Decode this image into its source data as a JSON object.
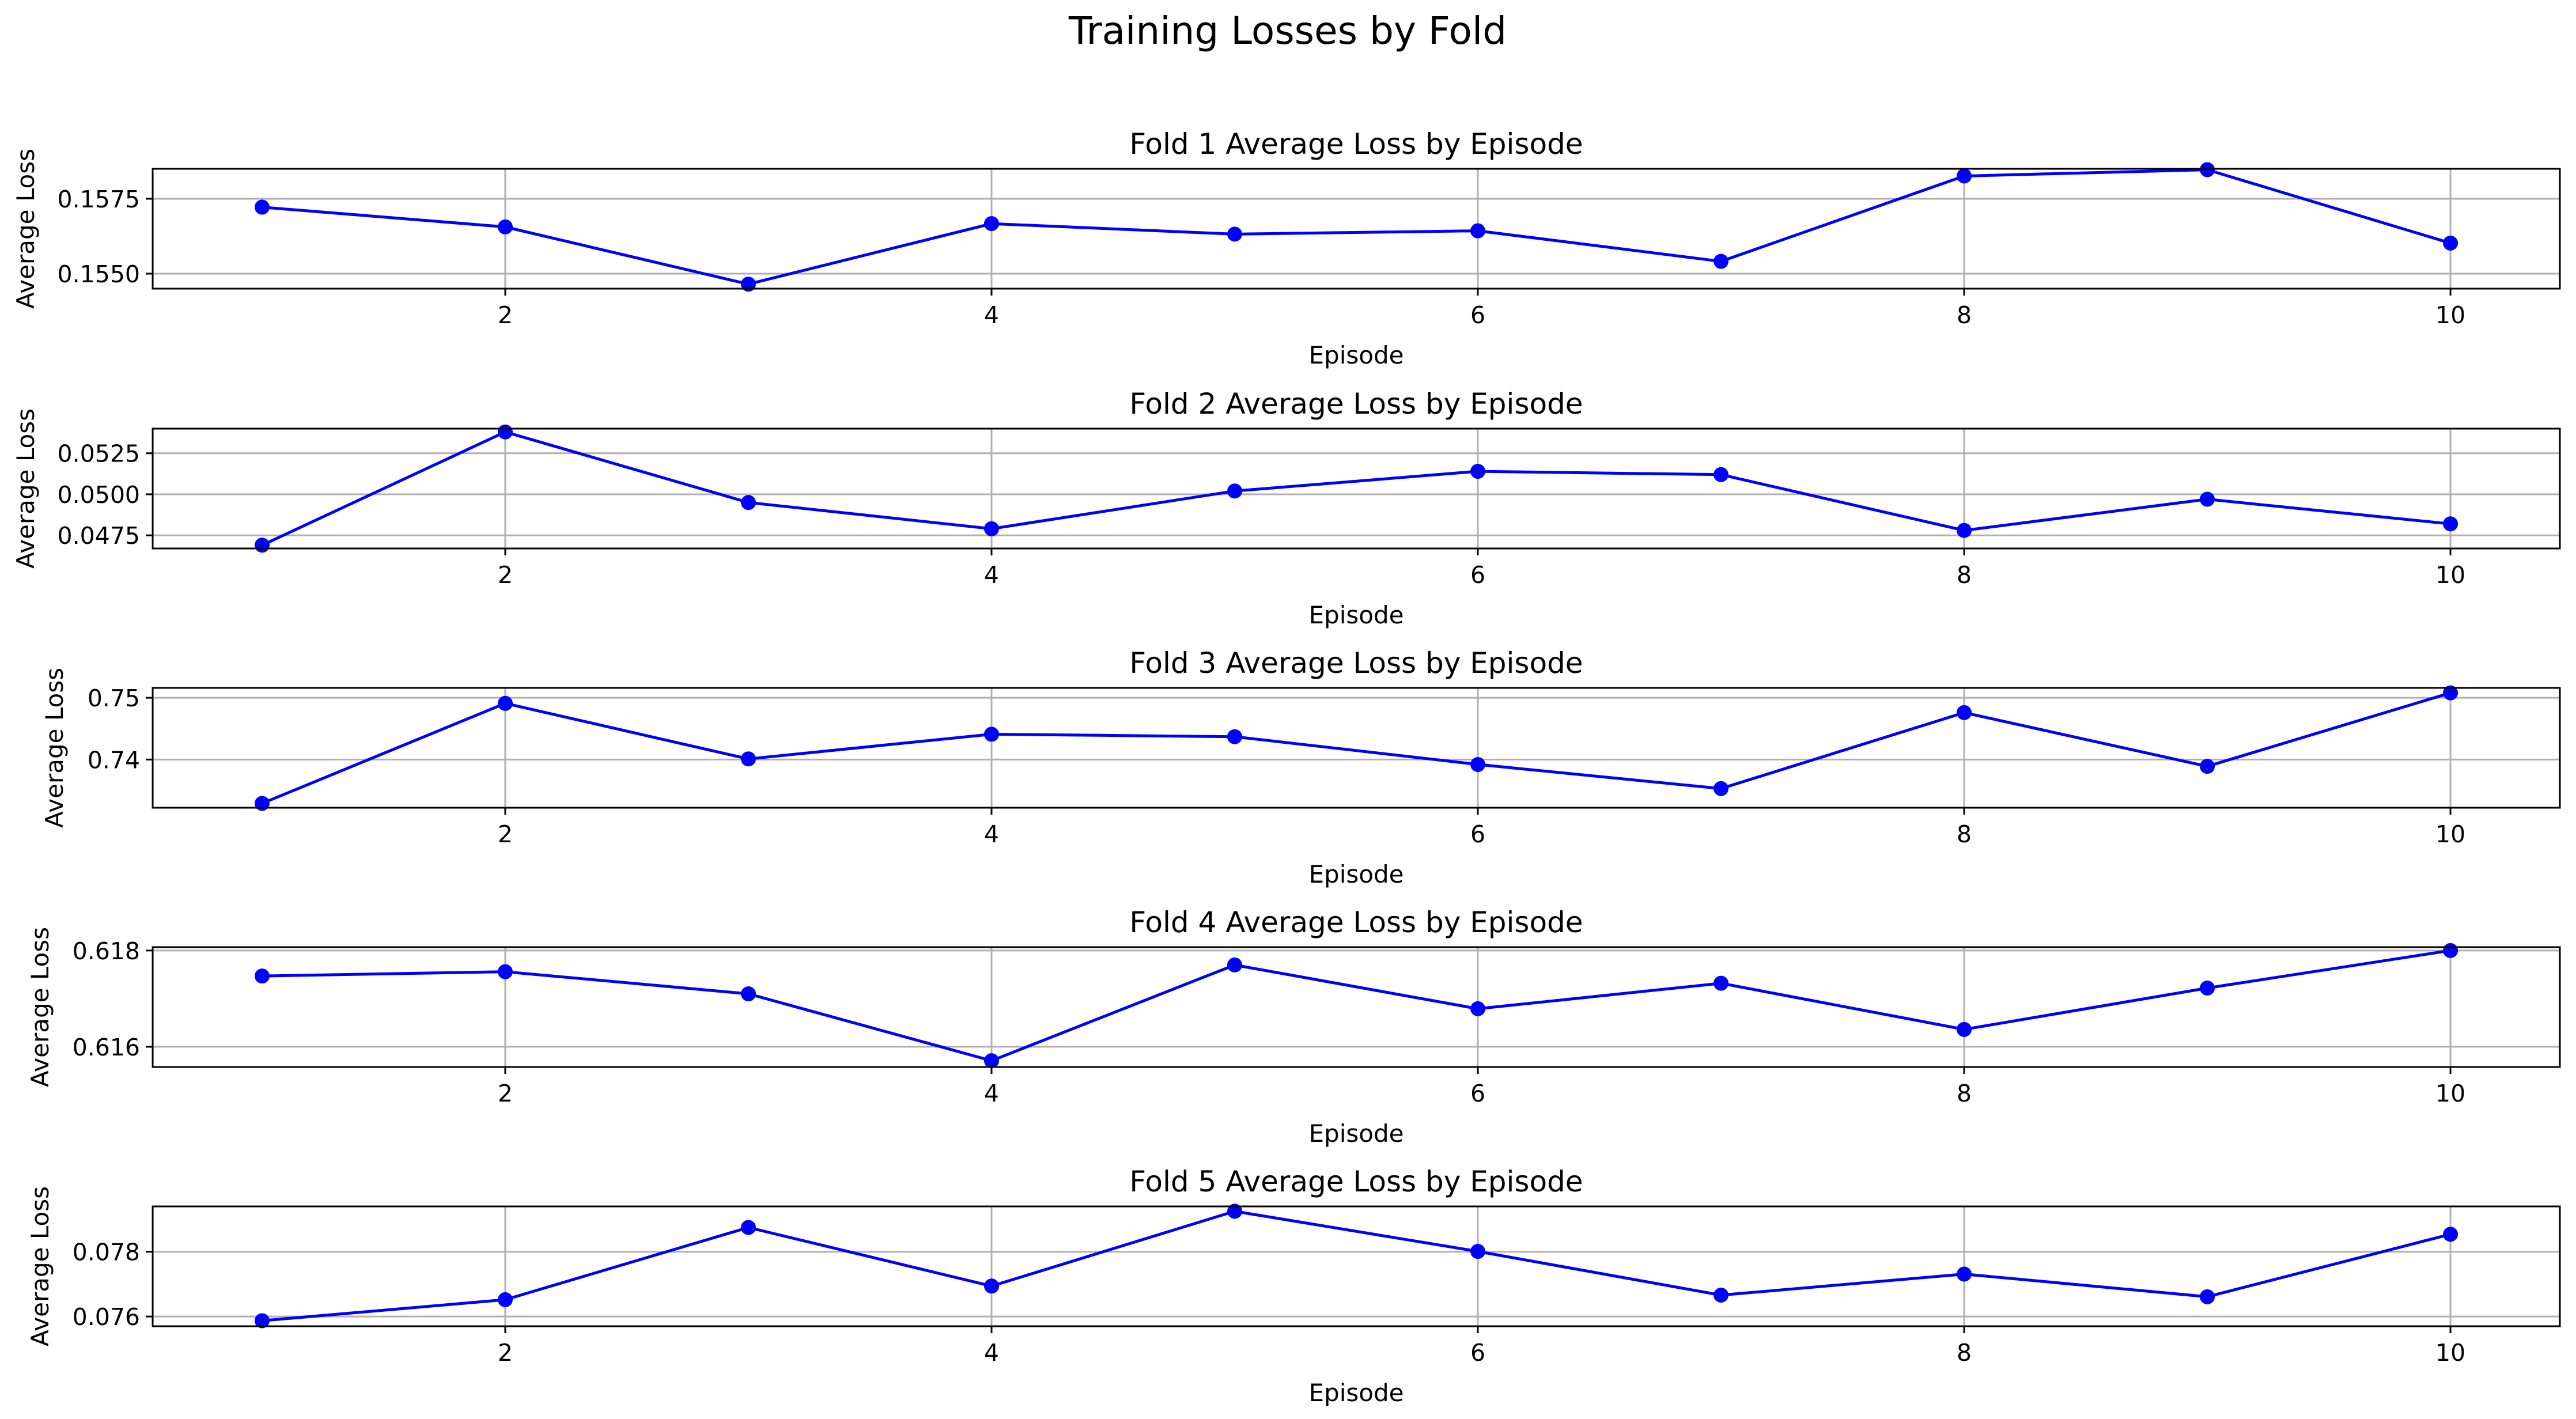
{
  "suptitle": "Training Losses by Fold",
  "chart_data": [
    {
      "type": "line",
      "title": "Fold 1 Average Loss by Episode",
      "xlabel": "Episode",
      "ylabel": "Average Loss",
      "x": [
        1,
        2,
        3,
        4,
        5,
        6,
        7,
        8,
        9,
        10
      ],
      "series": [
        {
          "values": [
            0.15722,
            0.15656,
            0.15465,
            0.15667,
            0.15632,
            0.15643,
            0.15541,
            0.15826,
            0.15847,
            0.15602
          ],
          "color": "#0000ff",
          "marker": "circle"
        }
      ],
      "xlim": [
        0.55,
        10.45
      ],
      "ylim": [
        0.1545,
        0.1585
      ],
      "xticks": [
        2,
        4,
        6,
        8,
        10
      ],
      "xtick_labels": [
        "2",
        "4",
        "6",
        "8",
        "10"
      ],
      "yticks": [
        0.155,
        0.1575
      ],
      "ytick_labels": [
        "0.1550",
        "0.1575"
      ],
      "grid": true
    },
    {
      "type": "line",
      "title": "Fold 2 Average Loss by Episode",
      "xlabel": "Episode",
      "ylabel": "Average Loss",
      "x": [
        1,
        2,
        3,
        4,
        5,
        6,
        7,
        8,
        9,
        10
      ],
      "series": [
        {
          "values": [
            0.0469,
            0.0538,
            0.0495,
            0.0479,
            0.0502,
            0.0514,
            0.0512,
            0.0478,
            0.0497,
            0.0482
          ],
          "color": "#0000ff",
          "marker": "circle"
        }
      ],
      "xlim": [
        0.55,
        10.45
      ],
      "ylim": [
        0.0467,
        0.054
      ],
      "xticks": [
        2,
        4,
        6,
        8,
        10
      ],
      "xtick_labels": [
        "2",
        "4",
        "6",
        "8",
        "10"
      ],
      "yticks": [
        0.0475,
        0.05,
        0.0525
      ],
      "ytick_labels": [
        "0.0475",
        "0.0500",
        "0.0525"
      ],
      "grid": true
    },
    {
      "type": "line",
      "title": "Fold 3 Average Loss by Episode",
      "xlabel": "Episode",
      "ylabel": "Average Loss",
      "x": [
        1,
        2,
        3,
        4,
        5,
        6,
        7,
        8,
        9,
        10
      ],
      "series": [
        {
          "values": [
            0.7329,
            0.7491,
            0.7401,
            0.7441,
            0.7437,
            0.7392,
            0.7353,
            0.7476,
            0.7389,
            0.7508
          ],
          "color": "#0000ff",
          "marker": "circle"
        }
      ],
      "xlim": [
        0.55,
        10.45
      ],
      "ylim": [
        0.7322,
        0.7516
      ],
      "xticks": [
        2,
        4,
        6,
        8,
        10
      ],
      "xtick_labels": [
        "2",
        "4",
        "6",
        "8",
        "10"
      ],
      "yticks": [
        0.74,
        0.75
      ],
      "ytick_labels": [
        "0.74",
        "0.75"
      ],
      "grid": true
    },
    {
      "type": "line",
      "title": "Fold 4 Average Loss by Episode",
      "xlabel": "Episode",
      "ylabel": "Average Loss",
      "x": [
        1,
        2,
        3,
        4,
        5,
        6,
        7,
        8,
        9,
        10
      ],
      "series": [
        {
          "values": [
            0.61747,
            0.61756,
            0.6171,
            0.61571,
            0.6177,
            0.61679,
            0.61732,
            0.61636,
            0.61722,
            0.618
          ],
          "color": "#0000ff",
          "marker": "circle"
        }
      ],
      "xlim": [
        0.55,
        10.45
      ],
      "ylim": [
        0.61558,
        0.61807
      ],
      "xticks": [
        2,
        4,
        6,
        8,
        10
      ],
      "xtick_labels": [
        "2",
        "4",
        "6",
        "8",
        "10"
      ],
      "yticks": [
        0.616,
        0.618
      ],
      "ytick_labels": [
        "0.616",
        "0.618"
      ],
      "grid": true
    },
    {
      "type": "line",
      "title": "Fold 5 Average Loss by Episode",
      "xlabel": "Episode",
      "ylabel": "Average Loss",
      "x": [
        1,
        2,
        3,
        4,
        5,
        6,
        7,
        8,
        9,
        10
      ],
      "series": [
        {
          "values": [
            0.07587,
            0.07652,
            0.07875,
            0.07694,
            0.07925,
            0.07801,
            0.07666,
            0.07731,
            0.07661,
            0.07854
          ],
          "color": "#0000ff",
          "marker": "circle"
        }
      ],
      "xlim": [
        0.55,
        10.45
      ],
      "ylim": [
        0.0757,
        0.0794
      ],
      "xticks": [
        2,
        4,
        6,
        8,
        10
      ],
      "xtick_labels": [
        "2",
        "4",
        "6",
        "8",
        "10"
      ],
      "yticks": [
        0.076,
        0.078
      ],
      "ytick_labels": [
        "0.076",
        "0.078"
      ],
      "grid": true
    }
  ]
}
